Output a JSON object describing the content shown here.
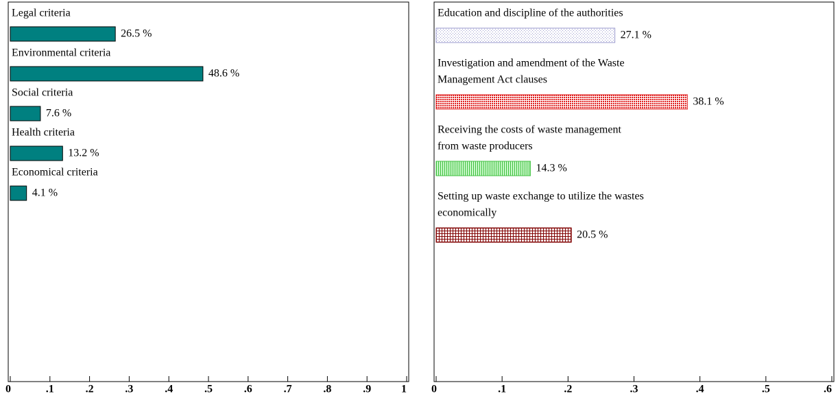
{
  "chart_data": [
    {
      "type": "bar",
      "categories": [
        [
          "Legal criteria"
        ],
        [
          "Environmental criteria"
        ],
        [
          "Social criteria"
        ],
        [
          "Health criteria"
        ],
        [
          "Economical criteria"
        ]
      ],
      "values": [
        0.265,
        0.486,
        0.076,
        0.132,
        0.041
      ],
      "value_labels": [
        "26.5 %",
        "48.6 %",
        "7.6 %",
        "13.2 %",
        "4.1 %"
      ],
      "colors": [
        "#008080",
        "#008080",
        "#008080",
        "#008080",
        "#008080"
      ],
      "xlim": [
        0,
        1
      ],
      "xticks": [
        0,
        {
          "value": 0.1,
          "label": ".1"
        },
        {
          "value": 0.2,
          "label": ".2"
        },
        {
          "value": 0.3,
          "label": ".3"
        },
        {
          "value": 0.4,
          "label": ".4"
        },
        {
          "value": 0.5,
          "label": ".5"
        },
        {
          "value": 0.6,
          "label": ".6"
        },
        {
          "value": 0.7,
          "label": ".7"
        },
        {
          "value": 0.8,
          "label": ".8"
        },
        {
          "value": 0.9,
          "label": ".9"
        },
        1
      ]
    },
    {
      "type": "bar",
      "categories": [
        [
          "Education and discipline of the authorities"
        ],
        [
          "Investigation and amendment of the Waste",
          "Management Act clauses"
        ],
        [
          "Receiving the costs of waste management",
          "from waste producers"
        ],
        [
          "Setting up waste exchange to utilize the wastes",
          "economically"
        ]
      ],
      "values": [
        0.271,
        0.381,
        0.143,
        0.205
      ],
      "value_labels": [
        "27.1 %",
        "38.1 %",
        "14.3 %",
        "20.5 %"
      ],
      "colors": [
        "#9999cc",
        "#e02020",
        "#40c040",
        "#800000"
      ],
      "xlim": [
        0,
        0.6
      ],
      "xticks": [
        0,
        {
          "value": 0.1,
          "label": ".1"
        },
        {
          "value": 0.2,
          "label": ".2"
        },
        {
          "value": 0.3,
          "label": ".3"
        },
        {
          "value": 0.4,
          "label": ".4"
        },
        {
          "value": 0.5,
          "label": ".5"
        },
        {
          "value": 0.6,
          "label": ".6"
        }
      ]
    }
  ]
}
